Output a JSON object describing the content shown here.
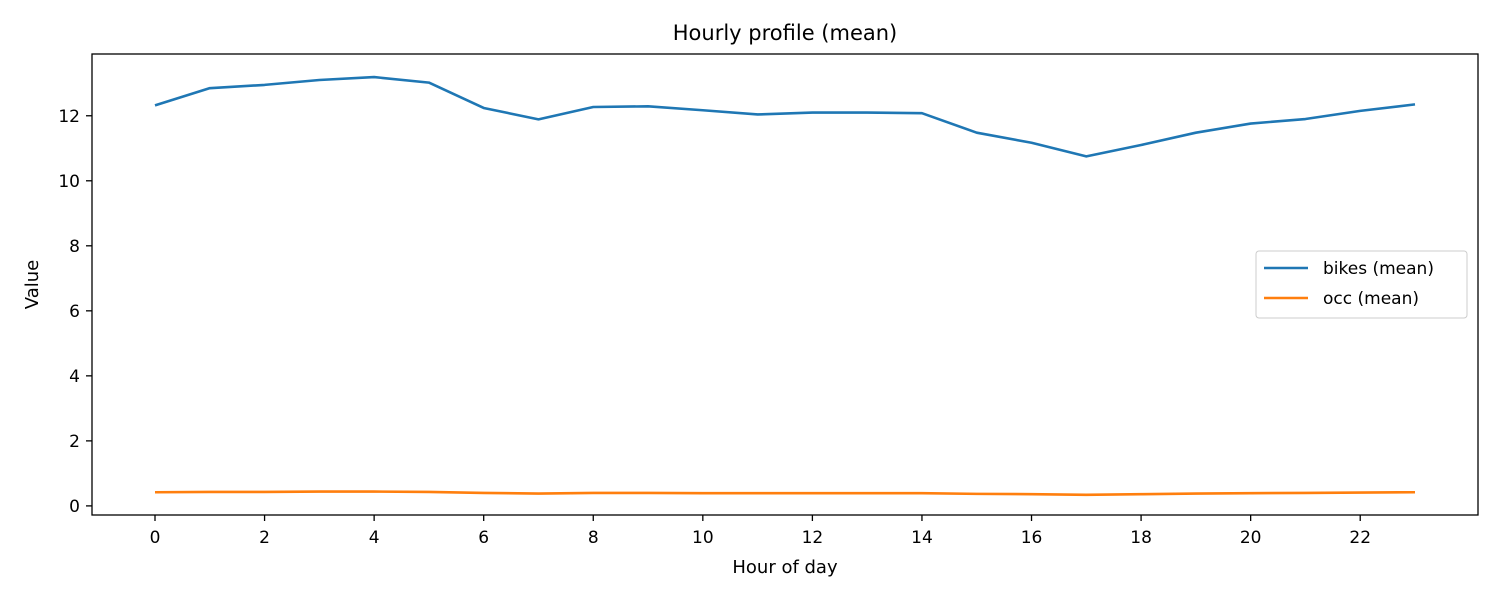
{
  "chart_data": {
    "type": "line",
    "title": "Hourly profile (mean)",
    "xlabel": "Hour of day",
    "ylabel": "Value",
    "x": [
      0,
      1,
      2,
      3,
      4,
      5,
      6,
      7,
      8,
      9,
      10,
      11,
      12,
      13,
      14,
      15,
      16,
      17,
      18,
      19,
      20,
      21,
      22,
      23
    ],
    "xlim": [
      -1.15,
      24.15
    ],
    "ylim": [
      -0.28,
      13.9
    ],
    "xticks": [
      0,
      2,
      4,
      6,
      8,
      10,
      12,
      14,
      16,
      18,
      20,
      22
    ],
    "yticks": [
      0,
      2,
      4,
      6,
      8,
      10,
      12
    ],
    "grid": false,
    "legend_placement": "center-right",
    "series": [
      {
        "name": "bikes (mean)",
        "color": "#1f77b4",
        "values": [
          12.32,
          12.85,
          12.95,
          13.1,
          13.19,
          13.02,
          12.24,
          11.89,
          12.27,
          12.29,
          12.17,
          12.04,
          12.1,
          12.1,
          12.08,
          11.48,
          11.17,
          10.75,
          11.1,
          11.48,
          11.76,
          11.9,
          12.15,
          12.35
        ]
      },
      {
        "name": "occ (mean)",
        "color": "#ff7f0e",
        "values": [
          0.42,
          0.43,
          0.43,
          0.44,
          0.44,
          0.43,
          0.4,
          0.38,
          0.4,
          0.4,
          0.39,
          0.39,
          0.39,
          0.39,
          0.39,
          0.37,
          0.36,
          0.34,
          0.36,
          0.38,
          0.39,
          0.4,
          0.41,
          0.42
        ]
      }
    ]
  }
}
